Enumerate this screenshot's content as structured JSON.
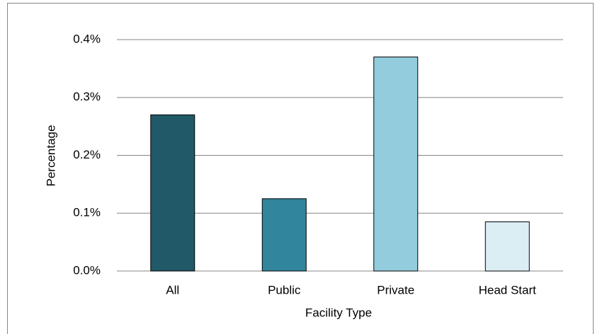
{
  "chart_data": {
    "type": "bar",
    "x_label": "Facility Type",
    "y_label": "Percentage",
    "categories": [
      "All",
      "Public",
      "Private",
      "Head Start"
    ],
    "values": [
      0.27,
      0.125,
      0.37,
      0.085
    ],
    "colors": [
      "#215968",
      "#31859c",
      "#93cddd",
      "#dbeef4"
    ],
    "ylim": [
      0,
      0.4
    ],
    "yticks": [
      {
        "value": 0,
        "label": "0.0%"
      },
      {
        "value": 0.1,
        "label": "0.1%"
      },
      {
        "value": 0.2,
        "label": "0.2%"
      },
      {
        "value": 0.3,
        "label": "0.3%"
      },
      {
        "value": 0.4,
        "label": "0.4%"
      }
    ],
    "grid": true
  }
}
